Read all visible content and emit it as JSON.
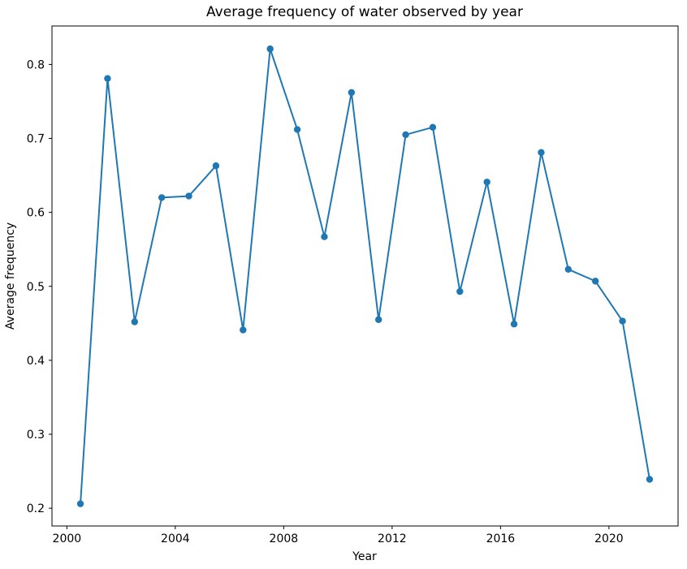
{
  "chart_data": {
    "type": "line",
    "title": "Average frequency of water observed by year",
    "xlabel": "Year",
    "ylabel": "Average frequency",
    "x": [
      2000.5,
      2001.5,
      2002.5,
      2003.5,
      2004.5,
      2005.5,
      2006.5,
      2007.5,
      2008.5,
      2009.5,
      2010.5,
      2011.5,
      2012.5,
      2013.5,
      2014.5,
      2015.5,
      2016.5,
      2017.5,
      2018.5,
      2019.5,
      2020.5,
      2021.5
    ],
    "y": [
      0.206,
      0.781,
      0.452,
      0.62,
      0.622,
      0.663,
      0.441,
      0.821,
      0.712,
      0.567,
      0.762,
      0.455,
      0.705,
      0.715,
      0.493,
      0.641,
      0.449,
      0.681,
      0.523,
      0.507,
      0.453,
      0.239
    ],
    "xlim": [
      1999.45,
      2022.55
    ],
    "ylim": [
      0.176,
      0.852
    ],
    "xticks": {
      "values": [
        2000,
        2004,
        2008,
        2012,
        2016,
        2020
      ],
      "labels": [
        "2000",
        "2004",
        "2008",
        "2012",
        "2016",
        "2020"
      ]
    },
    "yticks": {
      "values": [
        0.2,
        0.3,
        0.4,
        0.5,
        0.6,
        0.7,
        0.8
      ],
      "labels": [
        "0.2",
        "0.3",
        "0.4",
        "0.5",
        "0.6",
        "0.7",
        "0.8"
      ]
    },
    "series": [
      {
        "name": "average-frequency",
        "color": "#1f77b4",
        "marker": "o",
        "values": [
          0.206,
          0.781,
          0.452,
          0.62,
          0.622,
          0.663,
          0.441,
          0.821,
          0.712,
          0.567,
          0.762,
          0.455,
          0.705,
          0.715,
          0.493,
          0.641,
          0.449,
          0.681,
          0.523,
          0.507,
          0.453,
          0.239
        ]
      }
    ],
    "grid": false,
    "legend": null,
    "axis_color": "#000000",
    "background_color": "#ffffff"
  }
}
